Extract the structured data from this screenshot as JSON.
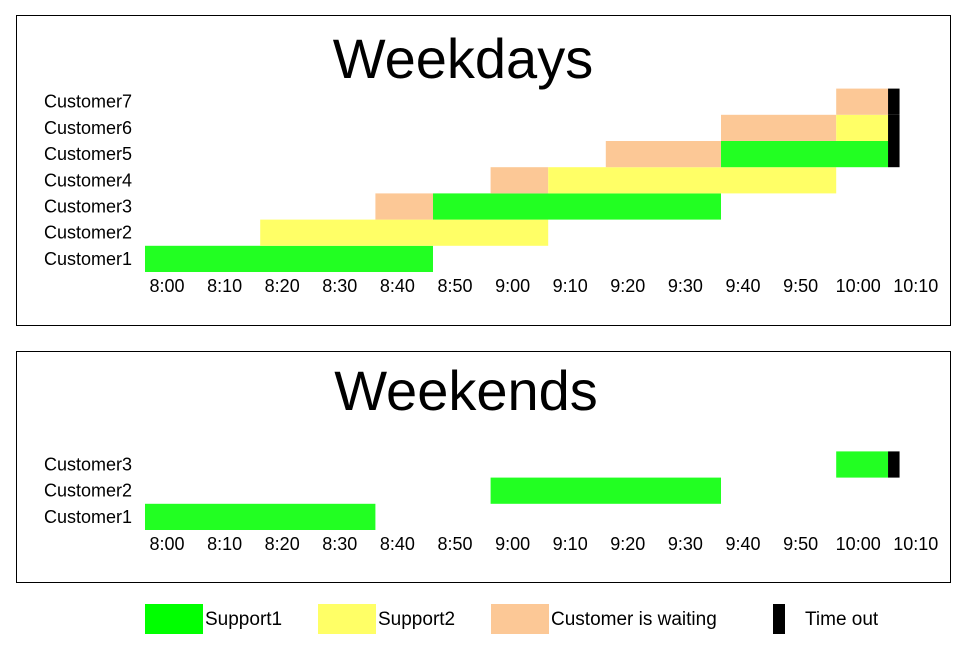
{
  "chart_data": [
    {
      "type": "gantt",
      "title": "Weekdays",
      "x_ticks": [
        "8:00",
        "8:10",
        "8:20",
        "8:30",
        "8:40",
        "8:50",
        "9:00",
        "9:10",
        "9:20",
        "9:30",
        "9:40",
        "9:50",
        "10:00",
        "10:10"
      ],
      "xlim": [
        "8:00",
        "10:10"
      ],
      "categories": [
        "Customer1",
        "Customer2",
        "Customer3",
        "Customer4",
        "Customer5",
        "Customer6",
        "Customer7"
      ],
      "segments": [
        {
          "category": "Customer1",
          "state": "Support1",
          "start": "8:00",
          "end": "8:50"
        },
        {
          "category": "Customer2",
          "state": "Support2",
          "start": "8:20",
          "end": "9:10"
        },
        {
          "category": "Customer3",
          "state": "Customer is waiting",
          "start": "8:40",
          "end": "8:50"
        },
        {
          "category": "Customer3",
          "state": "Support1",
          "start": "8:50",
          "end": "9:40"
        },
        {
          "category": "Customer4",
          "state": "Customer is waiting",
          "start": "9:00",
          "end": "9:10"
        },
        {
          "category": "Customer4",
          "state": "Support2",
          "start": "9:10",
          "end": "10:00"
        },
        {
          "category": "Customer5",
          "state": "Customer is waiting",
          "start": "9:20",
          "end": "9:40"
        },
        {
          "category": "Customer5",
          "state": "Support1",
          "start": "9:40",
          "end": "10:09"
        },
        {
          "category": "Customer5",
          "state": "Time out",
          "start": "10:09",
          "end": "10:11"
        },
        {
          "category": "Customer6",
          "state": "Customer is waiting",
          "start": "9:40",
          "end": "10:00"
        },
        {
          "category": "Customer6",
          "state": "Support2",
          "start": "10:00",
          "end": "10:09"
        },
        {
          "category": "Customer6",
          "state": "Time out",
          "start": "10:09",
          "end": "10:11"
        },
        {
          "category": "Customer7",
          "state": "Customer is waiting",
          "start": "10:00",
          "end": "10:09"
        },
        {
          "category": "Customer7",
          "state": "Time out",
          "start": "10:09",
          "end": "10:11"
        }
      ]
    },
    {
      "type": "gantt",
      "title": "Weekends",
      "x_ticks": [
        "8:00",
        "8:10",
        "8:20",
        "8:30",
        "8:40",
        "8:50",
        "9:00",
        "9:10",
        "9:20",
        "9:30",
        "9:40",
        "9:50",
        "10:00",
        "10:10"
      ],
      "xlim": [
        "8:00",
        "10:10"
      ],
      "categories": [
        "Customer1",
        "Customer2",
        "Customer3"
      ],
      "segments": [
        {
          "category": "Customer1",
          "state": "Support1",
          "start": "8:00",
          "end": "8:40"
        },
        {
          "category": "Customer2",
          "state": "Support1",
          "start": "9:00",
          "end": "9:40"
        },
        {
          "category": "Customer3",
          "state": "Support1",
          "start": "10:00",
          "end": "10:09"
        },
        {
          "category": "Customer3",
          "state": "Time out",
          "start": "10:09",
          "end": "10:11"
        }
      ]
    }
  ],
  "legend": [
    {
      "label": "Support1",
      "color": "#00ff00"
    },
    {
      "label": "Support2",
      "color": "#ffff66"
    },
    {
      "label": "Customer is waiting",
      "color": "#fcc896"
    },
    {
      "label": "Time out",
      "color": "#000000"
    }
  ],
  "bar_colors": {
    "Support1": "#22ff22",
    "Support2": "#ffff66",
    "Customer is waiting": "#fcc896",
    "Time out": "#000000"
  }
}
